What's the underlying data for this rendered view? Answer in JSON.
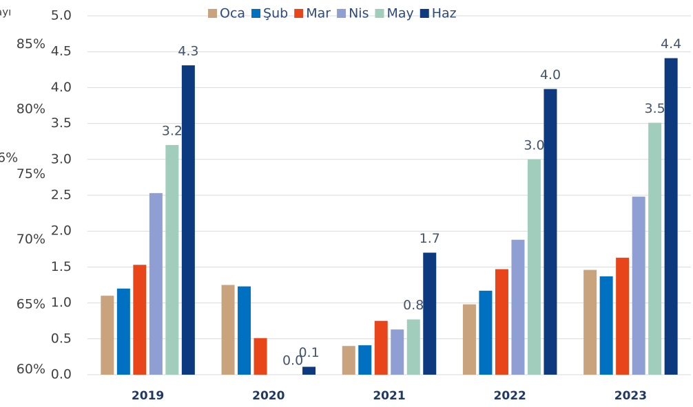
{
  "chart_data": {
    "type": "bar",
    "annotations": [
      "ayı",
      "6%"
    ],
    "categories": [
      "2019",
      "2020",
      "2021",
      "2022",
      "2023"
    ],
    "series": [
      {
        "name": "Oca",
        "color": "#c9a27e",
        "values": [
          1.1,
          1.25,
          0.4,
          0.98,
          1.46
        ]
      },
      {
        "name": "Şub",
        "color": "#0070c0",
        "values": [
          1.2,
          1.23,
          0.41,
          1.17,
          1.37
        ]
      },
      {
        "name": "Mar",
        "color": "#e8451b",
        "values": [
          1.53,
          0.51,
          0.75,
          1.47,
          1.63
        ]
      },
      {
        "name": "Nis",
        "color": "#8f9fd4",
        "values": [
          2.53,
          null,
          0.63,
          1.88,
          2.48
        ]
      },
      {
        "name": "May",
        "color": "#a1cdbd",
        "values": [
          3.2,
          0,
          0.77,
          3.0,
          3.51
        ],
        "value_labels": [
          "3.2",
          "0.0",
          "0.8",
          "3.0",
          "3.5"
        ]
      },
      {
        "name": "Haz",
        "color": "#0d3a7e",
        "values": [
          4.31,
          0.11,
          1.7,
          3.98,
          4.41
        ],
        "value_labels": [
          "4.3",
          "0.1",
          "1.7",
          "4.0",
          "4.4"
        ]
      }
    ],
    "ylim": [
      0,
      5
    ],
    "yticks": [
      {
        "value": 0,
        "label": "0.0"
      },
      {
        "value": 0.5,
        "label": "0.5"
      },
      {
        "value": 1,
        "label": "1.0"
      },
      {
        "value": 1.5,
        "label": "1.5"
      },
      {
        "value": 2,
        "label": "2.0"
      },
      {
        "value": 2.5,
        "label": "2.5"
      },
      {
        "value": 3,
        "label": "3.0"
      },
      {
        "value": 3.5,
        "label": "3.5"
      },
      {
        "value": 4,
        "label": "4.0"
      },
      {
        "value": 4.5,
        "label": "4.5"
      },
      {
        "value": 5,
        "label": "5.0"
      }
    ],
    "y2lim": [
      59.6,
      87.2
    ],
    "y2ticks": [
      {
        "value": 60,
        "label": "60%"
      },
      {
        "value": 65,
        "label": "65%"
      },
      {
        "value": 70,
        "label": "70%"
      },
      {
        "value": 75,
        "label": "75%"
      },
      {
        "value": 80,
        "label": "80%"
      },
      {
        "value": 85,
        "label": "85%"
      }
    ],
    "grid": true,
    "legend": "top"
  }
}
